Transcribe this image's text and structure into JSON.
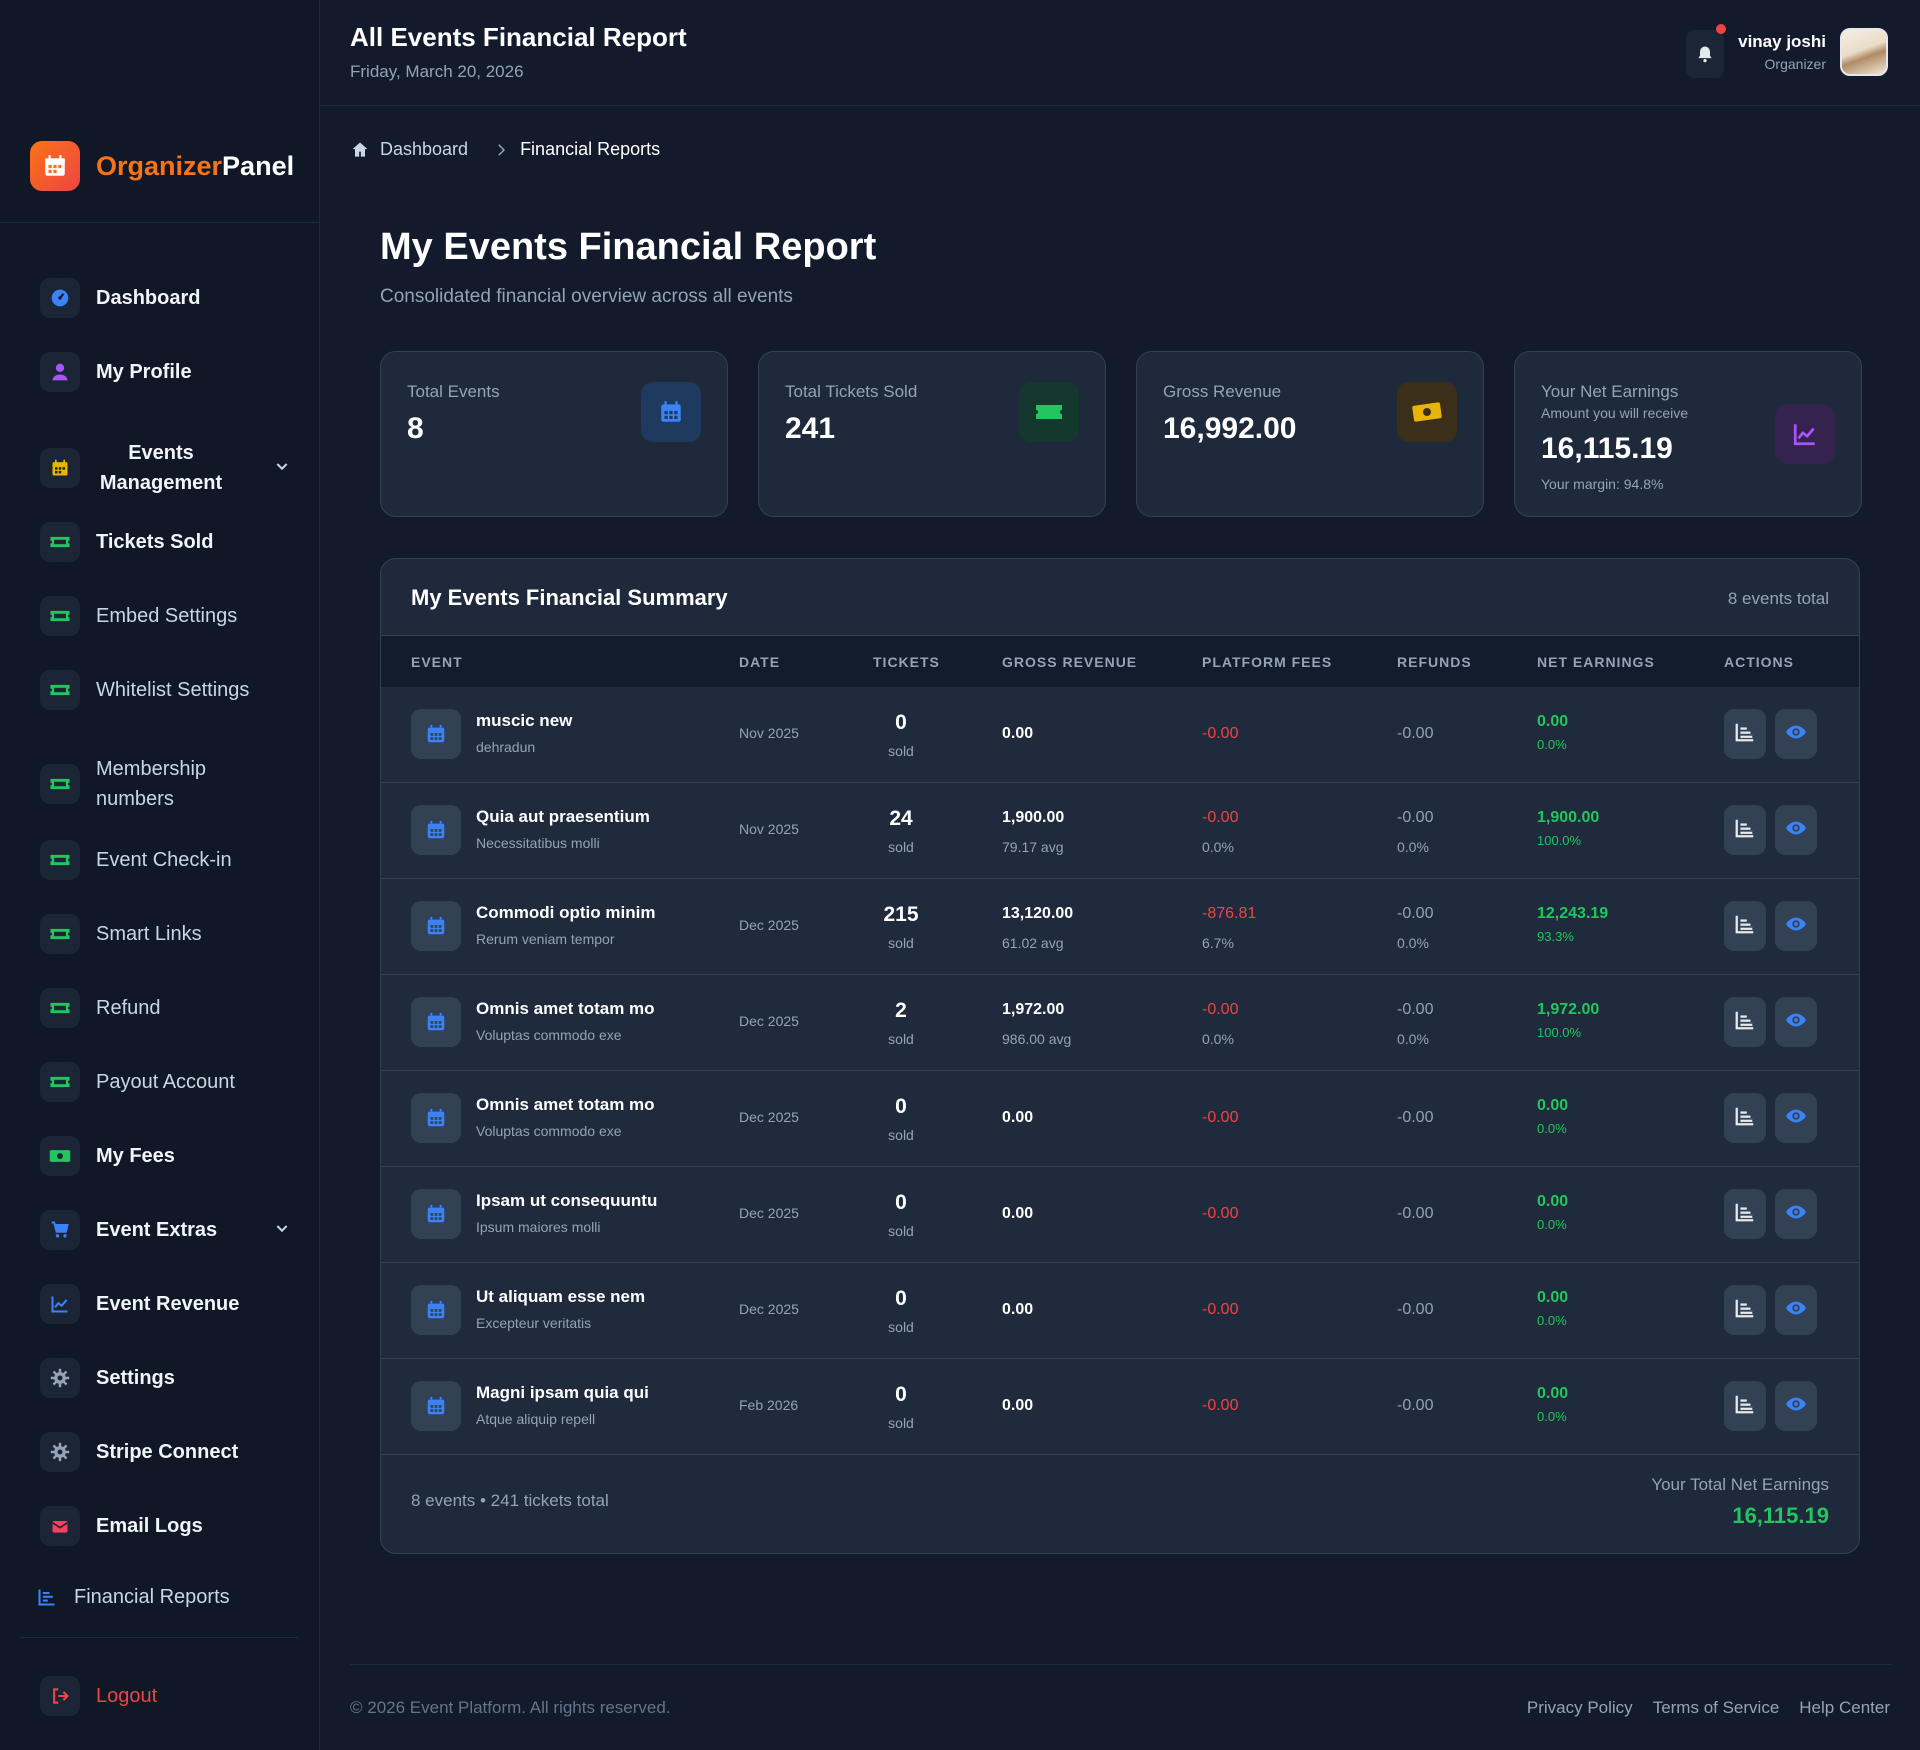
{
  "brand": {
    "accent": "Organizer",
    "rest": "Panel"
  },
  "header": {
    "title": "All Events Financial Report",
    "date": "Friday, March 20, 2026"
  },
  "user": {
    "name": "vinay joshi",
    "role": "Organizer"
  },
  "sidebar": {
    "items": [
      {
        "label": "Dashboard",
        "icon": "dashboard-gauge-icon"
      },
      {
        "label": "My Profile",
        "icon": "user-icon"
      },
      {
        "label": "Events Management",
        "icon": "calendar-icon"
      },
      {
        "label": "Tickets Sold",
        "icon": "ticket-icon"
      },
      {
        "label": "Embed Settings",
        "icon": "ticket-icon"
      },
      {
        "label": "Whitelist Settings",
        "icon": "ticket-icon"
      },
      {
        "label": "Membership numbers",
        "icon": "ticket-icon"
      },
      {
        "label": "Event Check-in",
        "icon": "ticket-icon"
      },
      {
        "label": "Smart Links",
        "icon": "ticket-icon"
      },
      {
        "label": "Refund",
        "icon": "ticket-icon"
      },
      {
        "label": "Payout Account",
        "icon": "ticket-icon"
      },
      {
        "label": "My Fees",
        "icon": "money-icon"
      },
      {
        "label": "Event Extras",
        "icon": "cart-icon"
      },
      {
        "label": "Event Revenue",
        "icon": "chart-line-icon"
      },
      {
        "label": "Settings",
        "icon": "gear-icon"
      },
      {
        "label": "Stripe Connect",
        "icon": "gear-icon"
      },
      {
        "label": "Email Logs",
        "icon": "envelope-icon"
      },
      {
        "label": "Financial Reports",
        "icon": "bar-chart-icon"
      }
    ],
    "logout": "Logout"
  },
  "breadcrumb": {
    "home": "Dashboard",
    "current": "Financial Reports"
  },
  "page": {
    "title": "My Events Financial Report",
    "subtitle": "Consolidated financial overview across all events"
  },
  "stats": {
    "total_events": {
      "label": "Total Events",
      "value": "8"
    },
    "tickets_sold": {
      "label": "Total Tickets Sold",
      "value": "241"
    },
    "gross_revenue": {
      "label": "Gross Revenue",
      "value": "16,992.00"
    },
    "net_earnings": {
      "label": "Your Net Earnings",
      "sublabel": "Amount you will receive",
      "value": "16,115.19",
      "margin": "Your margin: 94.8%"
    }
  },
  "summary": {
    "title": "My Events Financial Summary",
    "count": "8 events total",
    "columns": [
      "EVENT",
      "DATE",
      "TICKETS",
      "GROSS REVENUE",
      "PLATFORM FEES",
      "REFUNDS",
      "NET EARNINGS",
      "ACTIONS"
    ],
    "rows": [
      {
        "name": "muscic new",
        "location": "dehradun",
        "date": "Nov 2025",
        "tickets": "0",
        "sold": "sold",
        "gross": "0.00",
        "avg": "",
        "fees": "-0.00",
        "fees_pct": "",
        "refunds": "-0.00",
        "refunds_pct": "",
        "net": "0.00",
        "net_pct": "0.0%"
      },
      {
        "name": "Quia aut praesentium",
        "location": "Necessitatibus molli",
        "date": "Nov 2025",
        "tickets": "24",
        "sold": "sold",
        "gross": "1,900.00",
        "avg": "79.17 avg",
        "fees": "-0.00",
        "fees_pct": "0.0%",
        "refunds": "-0.00",
        "refunds_pct": "0.0%",
        "net": "1,900.00",
        "net_pct": "100.0%"
      },
      {
        "name": "Commodi optio minim",
        "location": "Rerum veniam tempor",
        "date": "Dec 2025",
        "tickets": "215",
        "sold": "sold",
        "gross": "13,120.00",
        "avg": "61.02 avg",
        "fees": "-876.81",
        "fees_pct": "6.7%",
        "refunds": "-0.00",
        "refunds_pct": "0.0%",
        "net": "12,243.19",
        "net_pct": "93.3%"
      },
      {
        "name": "Omnis amet totam mo",
        "location": "Voluptas commodo exe",
        "date": "Dec 2025",
        "tickets": "2",
        "sold": "sold",
        "gross": "1,972.00",
        "avg": "986.00 avg",
        "fees": "-0.00",
        "fees_pct": "0.0%",
        "refunds": "-0.00",
        "refunds_pct": "0.0%",
        "net": "1,972.00",
        "net_pct": "100.0%"
      },
      {
        "name": "Omnis amet totam mo",
        "location": "Voluptas commodo exe",
        "date": "Dec 2025",
        "tickets": "0",
        "sold": "sold",
        "gross": "0.00",
        "avg": "",
        "fees": "-0.00",
        "fees_pct": "",
        "refunds": "-0.00",
        "refunds_pct": "",
        "net": "0.00",
        "net_pct": "0.0%"
      },
      {
        "name": "Ipsam ut consequuntu",
        "location": "Ipsum maiores molli",
        "date": "Dec 2025",
        "tickets": "0",
        "sold": "sold",
        "gross": "0.00",
        "avg": "",
        "fees": "-0.00",
        "fees_pct": "",
        "refunds": "-0.00",
        "refunds_pct": "",
        "net": "0.00",
        "net_pct": "0.0%"
      },
      {
        "name": "Ut aliquam esse nem",
        "location": "Excepteur veritatis",
        "date": "Dec 2025",
        "tickets": "0",
        "sold": "sold",
        "gross": "0.00",
        "avg": "",
        "fees": "-0.00",
        "fees_pct": "",
        "refunds": "-0.00",
        "refunds_pct": "",
        "net": "0.00",
        "net_pct": "0.0%"
      },
      {
        "name": "Magni ipsam quia qui",
        "location": "Atque aliquip repell",
        "date": "Feb 2026",
        "tickets": "0",
        "sold": "sold",
        "gross": "0.00",
        "avg": "",
        "fees": "-0.00",
        "fees_pct": "",
        "refunds": "-0.00",
        "refunds_pct": "",
        "net": "0.00",
        "net_pct": "0.0%"
      }
    ],
    "footer_left": "8 events • 241 tickets total",
    "footer_total_label": "Your Total Net Earnings",
    "footer_total_value": "16,115.19"
  },
  "footer": {
    "copyright": "© 2026 Event Platform. All rights reserved.",
    "links": [
      "Privacy Policy",
      "Terms of Service",
      "Help Center"
    ]
  },
  "colors": {
    "accent": "#f97316",
    "positive": "#22c55e",
    "negative": "#ef4444",
    "background": "#121a2b",
    "card": "#1e293b"
  }
}
